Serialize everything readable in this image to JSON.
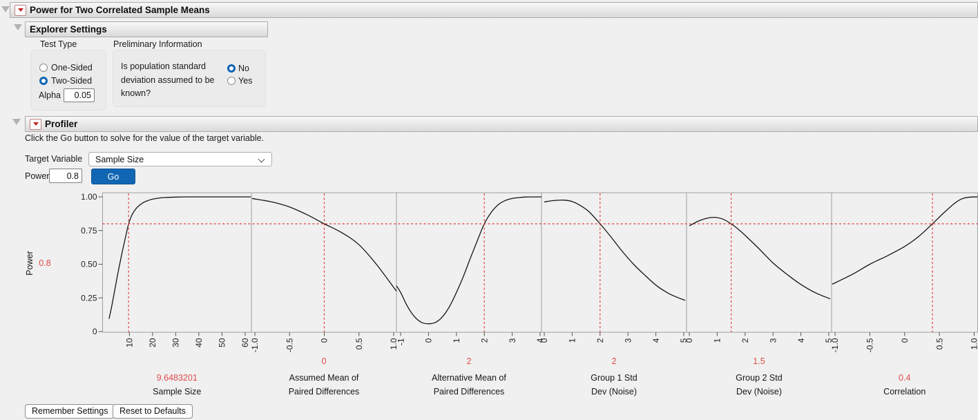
{
  "window": {
    "title": "Power for Two Correlated Sample Means"
  },
  "explorer": {
    "title": "Explorer Settings",
    "test_type": {
      "label": "Test Type",
      "options": [
        "One-Sided",
        "Two-Sided"
      ],
      "selected": "Two-Sided",
      "alpha_label": "Alpha",
      "alpha_value": "0.05"
    },
    "preliminary": {
      "label": "Preliminary Information",
      "question": "Is population standard deviation assumed to be known?",
      "options": [
        "No",
        "Yes"
      ],
      "selected": "No"
    }
  },
  "profiler": {
    "title": "Profiler",
    "caption": "Click the Go button to solve for the value of the target variable.",
    "target_variable_label": "Target Variable",
    "target_variable_value": "Sample Size",
    "power_label": "Power",
    "power_value": "0.8",
    "go_label": "Go"
  },
  "footer": {
    "remember_label": "Remember Settings",
    "reset_label": "Reset to Defaults"
  },
  "colors": {
    "red_line": "#e23b3b",
    "red_text": "#e04b4b",
    "frame": "#9e9e9e",
    "curve": "#141414",
    "tick_text": "#222222"
  },
  "chart_data": {
    "type": "line",
    "ylabel": "Power",
    "ylim": [
      0,
      1.03
    ],
    "yticks": [
      {
        "v": 1.0,
        "label": "1.00"
      },
      {
        "v": 0.75,
        "label": "0.75"
      },
      {
        "v": 0.5,
        "label": "0.50"
      },
      {
        "v": 0.25,
        "label": "0.25"
      },
      {
        "v": 0,
        "label": "0"
      }
    ],
    "y_current": 0.8,
    "y_current_label": "0.8",
    "panels": [
      {
        "name_lines": [
          "Sample Size"
        ],
        "value": 9.6483201,
        "value_label": "9.6483201",
        "xlim": [
          -1.6,
          62.7
        ],
        "ticks": [
          10,
          20,
          30,
          40,
          50,
          60
        ],
        "tick_labels": [
          "10",
          "20",
          "30",
          "40",
          "50",
          "60"
        ],
        "curve": [
          [
            1.2,
            0.095
          ],
          [
            2.5,
            0.2
          ],
          [
            4,
            0.34
          ],
          [
            5.5,
            0.475
          ],
          [
            7,
            0.6
          ],
          [
            8.3,
            0.7
          ],
          [
            9.65,
            0.8
          ],
          [
            11,
            0.862
          ],
          [
            12.5,
            0.905
          ],
          [
            14,
            0.933
          ],
          [
            16,
            0.958
          ],
          [
            18,
            0.973
          ],
          [
            20,
            0.983
          ],
          [
            23,
            0.992
          ],
          [
            26,
            0.996
          ],
          [
            30,
            0.9985
          ],
          [
            36,
            1.0
          ],
          [
            45,
            1.0
          ],
          [
            62.5,
            1.0
          ]
        ]
      },
      {
        "name_lines": [
          "Assumed Mean of",
          "Paired Differences"
        ],
        "value": 0,
        "value_label": "0",
        "xlim": [
          -1.05,
          1.04
        ],
        "ticks": [
          -1,
          -0.5,
          0,
          0.5,
          1
        ],
        "tick_labels": [
          "-1.0",
          "-0.5",
          "0",
          "0.5",
          "1.0"
        ],
        "curve": [
          [
            -1.04,
            0.988
          ],
          [
            -0.75,
            0.962
          ],
          [
            -0.5,
            0.925
          ],
          [
            -0.25,
            0.868
          ],
          [
            0,
            0.8
          ],
          [
            0.25,
            0.735
          ],
          [
            0.5,
            0.645
          ],
          [
            0.75,
            0.5
          ],
          [
            1.04,
            0.3
          ]
        ]
      },
      {
        "name_lines": [
          "Alternative Mean of",
          "Paired Differences"
        ],
        "value": 2,
        "value_label": "2",
        "xlim": [
          -1.15,
          4.05
        ],
        "ticks": [
          -1,
          0,
          1,
          2,
          3,
          4
        ],
        "tick_labels": [
          "-1",
          "0",
          "1",
          "2",
          "3",
          "4"
        ],
        "curve": [
          [
            -1.15,
            0.34
          ],
          [
            -1,
            0.29
          ],
          [
            -0.75,
            0.185
          ],
          [
            -0.5,
            0.11
          ],
          [
            -0.25,
            0.068
          ],
          [
            0,
            0.058
          ],
          [
            0.25,
            0.068
          ],
          [
            0.5,
            0.11
          ],
          [
            0.75,
            0.185
          ],
          [
            1,
            0.29
          ],
          [
            1.25,
            0.41
          ],
          [
            1.5,
            0.545
          ],
          [
            1.75,
            0.675
          ],
          [
            2,
            0.8
          ],
          [
            2.25,
            0.885
          ],
          [
            2.5,
            0.942
          ],
          [
            2.75,
            0.973
          ],
          [
            3,
            0.988
          ],
          [
            3.25,
            0.995
          ],
          [
            3.5,
            0.999
          ],
          [
            4.05,
            1.0
          ]
        ]
      },
      {
        "name_lines": [
          "Group 1 Std",
          "Dev (Noise)"
        ],
        "value": 2,
        "value_label": "2",
        "xlim": [
          -0.1,
          5.1
        ],
        "ticks": [
          0,
          1,
          2,
          3,
          4,
          5
        ],
        "tick_labels": [
          "0",
          "1",
          "2",
          "3",
          "4",
          "5"
        ],
        "curve": [
          [
            0,
            0.962
          ],
          [
            0.3,
            0.972
          ],
          [
            0.7,
            0.976
          ],
          [
            1,
            0.965
          ],
          [
            1.3,
            0.935
          ],
          [
            1.6,
            0.89
          ],
          [
            2,
            0.8
          ],
          [
            2.4,
            0.7
          ],
          [
            2.8,
            0.595
          ],
          [
            3.2,
            0.5
          ],
          [
            3.6,
            0.42
          ],
          [
            4,
            0.345
          ],
          [
            4.4,
            0.29
          ],
          [
            4.7,
            0.26
          ],
          [
            5.05,
            0.232
          ]
        ]
      },
      {
        "name_lines": [
          "Group 2 Std",
          "Dev (Noise)"
        ],
        "value": 1.5,
        "value_label": "1.5",
        "xlim": [
          -0.1,
          5.1
        ],
        "ticks": [
          0,
          1,
          2,
          3,
          4,
          5
        ],
        "tick_labels": [
          "0",
          "1",
          "2",
          "3",
          "4",
          "5"
        ],
        "curve": [
          [
            0,
            0.785
          ],
          [
            0.3,
            0.818
          ],
          [
            0.6,
            0.84
          ],
          [
            0.9,
            0.848
          ],
          [
            1.2,
            0.835
          ],
          [
            1.5,
            0.8
          ],
          [
            1.8,
            0.752
          ],
          [
            2.1,
            0.695
          ],
          [
            2.5,
            0.615
          ],
          [
            3,
            0.51
          ],
          [
            3.5,
            0.425
          ],
          [
            4,
            0.35
          ],
          [
            4.5,
            0.29
          ],
          [
            5.05,
            0.243
          ]
        ]
      },
      {
        "name_lines": [
          "Correlation"
        ],
        "value": 0.4,
        "value_label": "0.4",
        "xlim": [
          -1.05,
          1.05
        ],
        "ticks": [
          -1,
          -0.5,
          0,
          0.5,
          1
        ],
        "tick_labels": [
          "-1.0",
          "-0.5",
          "0",
          "0.5",
          "1.0"
        ],
        "curve": [
          [
            -1.04,
            0.352
          ],
          [
            -0.75,
            0.425
          ],
          [
            -0.5,
            0.5
          ],
          [
            -0.25,
            0.562
          ],
          [
            0,
            0.632
          ],
          [
            0.2,
            0.705
          ],
          [
            0.4,
            0.8
          ],
          [
            0.55,
            0.875
          ],
          [
            0.7,
            0.945
          ],
          [
            0.8,
            0.98
          ],
          [
            0.9,
            0.996
          ],
          [
            1.05,
            1.0
          ]
        ]
      }
    ]
  }
}
